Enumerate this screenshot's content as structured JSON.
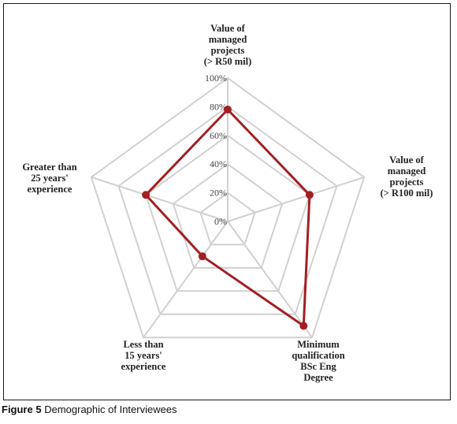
{
  "caption": {
    "figure_number": "Figure 5",
    "text": "Demographic of Interviewees"
  },
  "colors": {
    "series": "#a31f24",
    "grid": "#d0d0d0",
    "frame": "#1a1a1a"
  },
  "chart_data": {
    "type": "radar",
    "title": "",
    "axes": [
      [
        "Value of",
        "managed",
        "projects",
        "(> R50 mil)"
      ],
      [
        "Value of",
        "managed",
        "projects",
        "(> R100 mil)"
      ],
      [
        "Minimum",
        "qualification",
        "BSc Eng",
        "Degree"
      ],
      [
        "Less than",
        "15 years'",
        "experience"
      ],
      [
        "Greater than",
        "25 years'",
        "experience"
      ]
    ],
    "rlim": [
      0,
      100
    ],
    "ticks": [
      0,
      20,
      40,
      60,
      80,
      100
    ],
    "tick_labels": [
      "0%",
      "20%",
      "40%",
      "60%",
      "80%",
      "100%"
    ],
    "grid": true,
    "series": [
      {
        "values": [
          78,
          60,
          90,
          30,
          60
        ]
      }
    ]
  }
}
